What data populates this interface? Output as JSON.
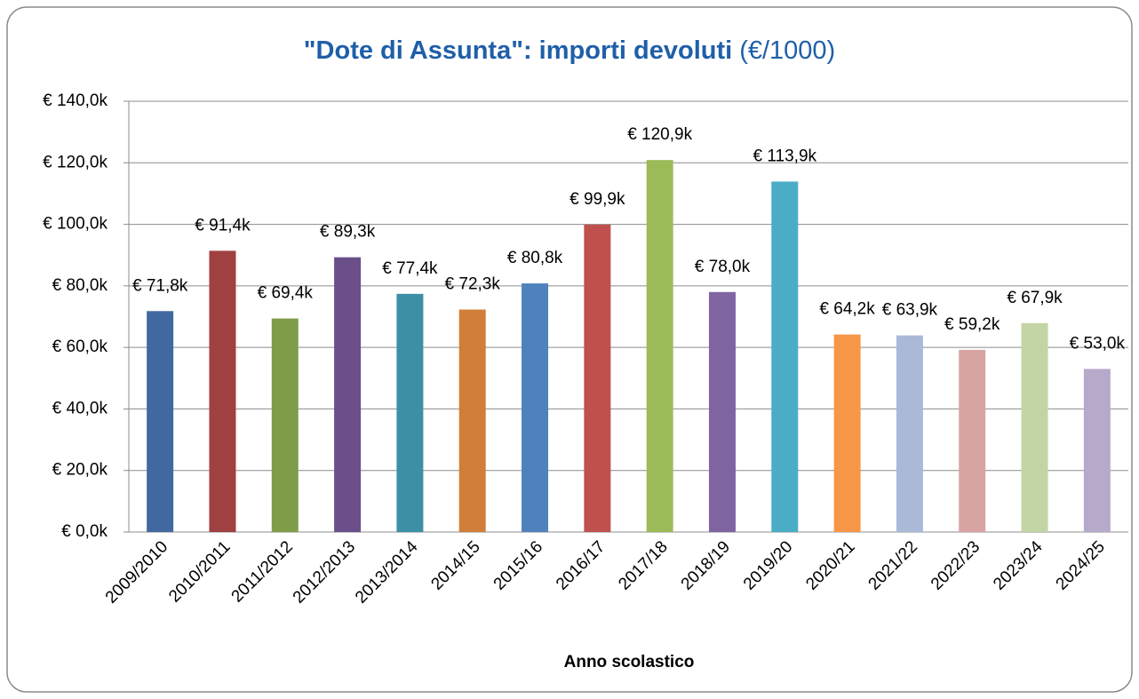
{
  "chart_data": {
    "type": "bar",
    "title": "\"Dote di Assunta\": importi devoluti",
    "subtitle": "(€/1000)",
    "x_label": "Anno scolastico",
    "categories": [
      "2009/2010",
      "2010/2011",
      "2011/2012",
      "2012/2013",
      "2013/2014",
      "2014/15",
      "2015/16",
      "2016/17",
      "2017/18",
      "2018/19",
      "2019/20",
      "2020/21",
      "2021/22",
      "2022/23",
      "2023/24",
      "2024/25"
    ],
    "values": [
      71.8,
      91.4,
      69.4,
      89.3,
      77.4,
      72.3,
      80.8,
      99.9,
      120.9,
      78.0,
      113.9,
      64.2,
      63.9,
      59.2,
      67.9,
      53.0
    ],
    "value_labels": [
      "€ 71,8k",
      "€ 91,4k",
      "€ 69,4k",
      "€ 89,3k",
      "€ 77,4k",
      "€ 72,3k",
      "€ 80,8k",
      "€ 99,9k",
      "€ 120,9k",
      "€ 78,0k",
      "€ 113,9k",
      "€ 64,2k",
      "€ 63,9k",
      "€ 59,2k",
      "€ 67,9k",
      "€ 53,0k"
    ],
    "colors": [
      "#4169a0",
      "#a04040",
      "#7f9c48",
      "#6a4f8a",
      "#3d8fa6",
      "#d07e3a",
      "#4f81bd",
      "#c0504d",
      "#9bbb59",
      "#8064a2",
      "#4bacc6",
      "#f79646",
      "#a9b9d7",
      "#d8a4a3",
      "#c3d5a4",
      "#b6a9c9"
    ],
    "ylim": [
      0,
      140
    ],
    "yticks": [
      {
        "value": 0,
        "label": "€ 0,0k"
      },
      {
        "value": 20,
        "label": "€ 20,0k"
      },
      {
        "value": 40,
        "label": "€ 40,0k"
      },
      {
        "value": 60,
        "label": "€ 60,0k"
      },
      {
        "value": 80,
        "label": "€ 80,0k"
      },
      {
        "value": 100,
        "label": "€ 100,0k"
      },
      {
        "value": 120,
        "label": "€ 120,0k"
      },
      {
        "value": 140,
        "label": "€ 140,0k"
      }
    ],
    "grid": true
  }
}
